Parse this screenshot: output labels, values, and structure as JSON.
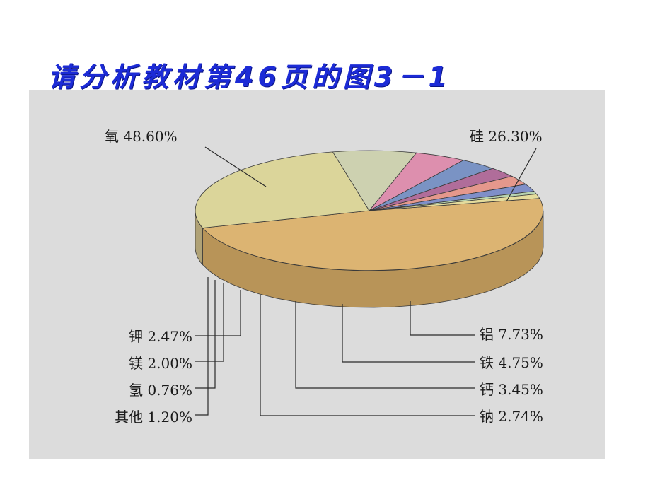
{
  "slide_title": "请分析教材第46页的图3－1",
  "chart_data": {
    "type": "pie",
    "title": "",
    "slices": [
      {
        "name": "氧",
        "value": 48.6,
        "label": "氧 48.60%",
        "color": "#dcb472",
        "side": "#b89458"
      },
      {
        "name": "硅",
        "value": 26.3,
        "label": "硅 26.30%",
        "color": "#dbd59a",
        "side": "#b0a276"
      },
      {
        "name": "铝",
        "value": 7.73,
        "label": "铝 7.73%",
        "color": "#cdd1b0",
        "side": "#a89f7a"
      },
      {
        "name": "铁",
        "value": 4.75,
        "label": "铁 4.75%",
        "color": "#dd8fae",
        "side": "#b96a7e"
      },
      {
        "name": "钙",
        "value": 3.45,
        "label": "钙 3.45%",
        "color": "#7a93c4",
        "side": "#6a7994"
      },
      {
        "name": "钠",
        "value": 2.74,
        "label": "钠 2.74%",
        "color": "#b06d9a",
        "side": "#8e5a78"
      },
      {
        "name": "钾",
        "value": 2.47,
        "label": "钾 2.47%",
        "color": "#e5988c",
        "side": "#c08070"
      },
      {
        "name": "镁",
        "value": 2.0,
        "label": "镁 2.00%",
        "color": "#7f8fc8",
        "side": "#6879a6"
      },
      {
        "name": "氢",
        "value": 0.76,
        "label": "氢 0.76%",
        "color": "#b8d4b0",
        "side": "#9cb294"
      },
      {
        "name": "其他",
        "value": 1.2,
        "label": "其他 1.20%",
        "color": "#e4dc9c",
        "side": "#c2b87e"
      }
    ],
    "legend": "none",
    "grid": false
  }
}
